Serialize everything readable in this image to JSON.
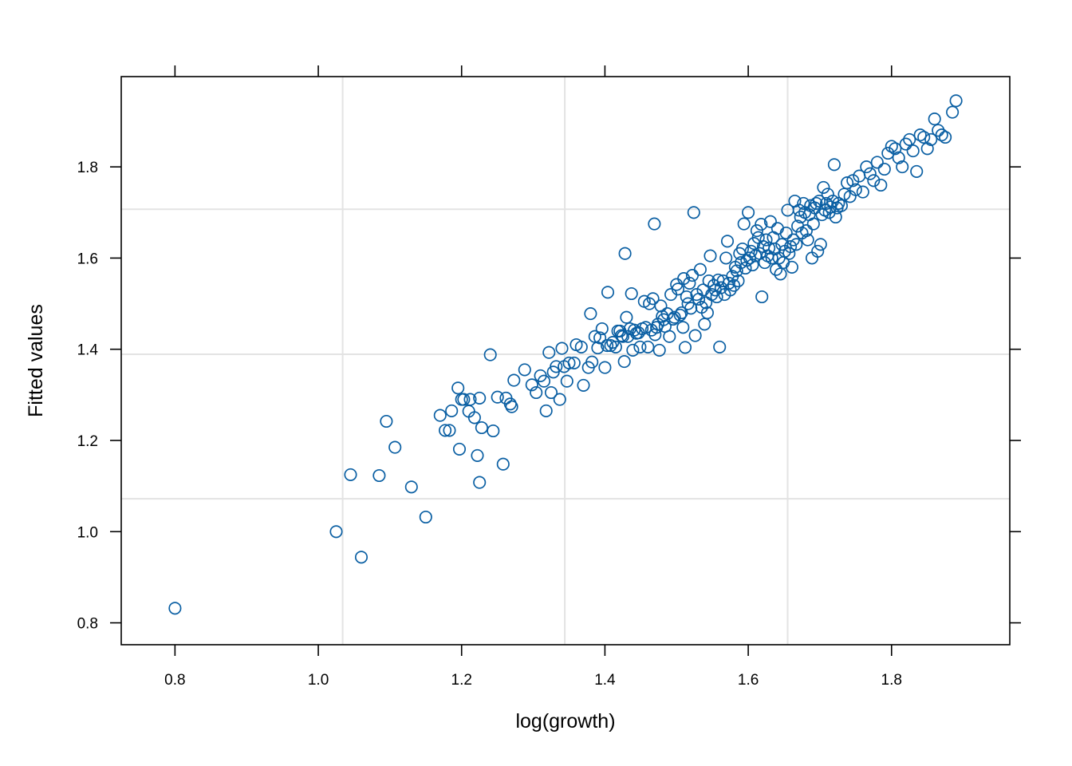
{
  "chart_data": {
    "type": "scatter",
    "title": "",
    "xlabel": "log(growth)",
    "ylabel": "Fitted values",
    "xlim": [
      0.725,
      1.965
    ],
    "ylim": [
      0.752,
      1.998
    ],
    "x_ticks": [
      0.8,
      1.0,
      1.2,
      1.4,
      1.6,
      1.8
    ],
    "y_ticks": [
      0.8,
      1.0,
      1.2,
      1.4,
      1.6,
      1.8
    ],
    "x_tick_labels": [
      "0.8",
      "1.0",
      "1.2",
      "1.4",
      "1.6",
      "1.8"
    ],
    "y_tick_labels": [
      "0.8",
      "1.0",
      "1.2",
      "1.4",
      "1.6",
      "1.8"
    ],
    "grid": true,
    "x_gridlines": [
      1.034,
      1.344,
      1.655
    ],
    "y_gridlines": [
      1.072,
      1.389,
      1.707
    ],
    "marker": "open-circle",
    "point_color": "#0a5fa3",
    "grid_color": "#e3e3e3",
    "series": [
      {
        "points": [
          [
            0.8,
            0.832
          ],
          [
            1.025,
            1.0
          ],
          [
            1.06,
            0.944
          ],
          [
            1.045,
            1.125
          ],
          [
            1.085,
            1.123
          ],
          [
            1.107,
            1.185
          ],
          [
            1.095,
            1.242
          ],
          [
            1.13,
            1.098
          ],
          [
            1.15,
            1.032
          ],
          [
            1.17,
            1.255
          ],
          [
            1.177,
            1.222
          ],
          [
            1.183,
            1.222
          ],
          [
            1.186,
            1.265
          ],
          [
            1.195,
            1.315
          ],
          [
            1.197,
            1.181
          ],
          [
            1.2,
            1.29
          ],
          [
            1.203,
            1.29
          ],
          [
            1.21,
            1.264
          ],
          [
            1.212,
            1.29
          ],
          [
            1.218,
            1.25
          ],
          [
            1.222,
            1.167
          ],
          [
            1.225,
            1.108
          ],
          [
            1.225,
            1.293
          ],
          [
            1.228,
            1.228
          ],
          [
            1.24,
            1.388
          ],
          [
            1.244,
            1.221
          ],
          [
            1.25,
            1.295
          ],
          [
            1.258,
            1.148
          ],
          [
            1.262,
            1.293
          ],
          [
            1.268,
            1.28
          ],
          [
            1.27,
            1.274
          ],
          [
            1.273,
            1.332
          ],
          [
            1.288,
            1.355
          ],
          [
            1.298,
            1.322
          ],
          [
            1.304,
            1.305
          ],
          [
            1.31,
            1.342
          ],
          [
            1.315,
            1.33
          ],
          [
            1.318,
            1.265
          ],
          [
            1.322,
            1.393
          ],
          [
            1.325,
            1.305
          ],
          [
            1.328,
            1.35
          ],
          [
            1.332,
            1.362
          ],
          [
            1.337,
            1.29
          ],
          [
            1.34,
            1.402
          ],
          [
            1.343,
            1.362
          ],
          [
            1.347,
            1.33
          ],
          [
            1.35,
            1.37
          ],
          [
            1.357,
            1.37
          ],
          [
            1.36,
            1.41
          ],
          [
            1.367,
            1.405
          ],
          [
            1.37,
            1.321
          ],
          [
            1.377,
            1.36
          ],
          [
            1.38,
            1.478
          ],
          [
            1.382,
            1.372
          ],
          [
            1.386,
            1.428
          ],
          [
            1.39,
            1.403
          ],
          [
            1.393,
            1.425
          ],
          [
            1.396,
            1.445
          ],
          [
            1.4,
            1.36
          ],
          [
            1.403,
            1.408
          ],
          [
            1.404,
            1.525
          ],
          [
            1.408,
            1.408
          ],
          [
            1.411,
            1.415
          ],
          [
            1.415,
            1.405
          ],
          [
            1.418,
            1.44
          ],
          [
            1.421,
            1.44
          ],
          [
            1.423,
            1.43
          ],
          [
            1.425,
            1.428
          ],
          [
            1.427,
            1.373
          ],
          [
            1.428,
            1.61
          ],
          [
            1.43,
            1.47
          ],
          [
            1.432,
            1.428
          ],
          [
            1.435,
            1.445
          ],
          [
            1.437,
            1.522
          ],
          [
            1.439,
            1.398
          ],
          [
            1.441,
            1.442
          ],
          [
            1.444,
            1.435
          ],
          [
            1.447,
            1.436
          ],
          [
            1.449,
            1.405
          ],
          [
            1.452,
            1.445
          ],
          [
            1.455,
            1.505
          ],
          [
            1.457,
            1.448
          ],
          [
            1.46,
            1.405
          ],
          [
            1.462,
            1.5
          ],
          [
            1.465,
            1.442
          ],
          [
            1.467,
            1.511
          ],
          [
            1.469,
            1.675
          ],
          [
            1.47,
            1.432
          ],
          [
            1.472,
            1.448
          ],
          [
            1.474,
            1.455
          ],
          [
            1.476,
            1.398
          ],
          [
            1.478,
            1.495
          ],
          [
            1.48,
            1.472
          ],
          [
            1.482,
            1.465
          ],
          [
            1.484,
            1.45
          ],
          [
            1.487,
            1.478
          ],
          [
            1.49,
            1.428
          ],
          [
            1.492,
            1.52
          ],
          [
            1.495,
            1.466
          ],
          [
            1.497,
            1.47
          ],
          [
            1.5,
            1.542
          ],
          [
            1.502,
            1.532
          ],
          [
            1.505,
            1.475
          ],
          [
            1.507,
            1.48
          ],
          [
            1.509,
            1.448
          ],
          [
            1.51,
            1.555
          ],
          [
            1.512,
            1.404
          ],
          [
            1.514,
            1.515
          ],
          [
            1.516,
            1.5
          ],
          [
            1.518,
            1.545
          ],
          [
            1.52,
            1.49
          ],
          [
            1.522,
            1.562
          ],
          [
            1.524,
            1.7
          ],
          [
            1.526,
            1.43
          ],
          [
            1.528,
            1.52
          ],
          [
            1.531,
            1.51
          ],
          [
            1.533,
            1.575
          ],
          [
            1.535,
            1.492
          ],
          [
            1.537,
            1.53
          ],
          [
            1.539,
            1.455
          ],
          [
            1.541,
            1.502
          ],
          [
            1.543,
            1.48
          ],
          [
            1.545,
            1.55
          ],
          [
            1.547,
            1.605
          ],
          [
            1.549,
            1.52
          ],
          [
            1.552,
            1.54
          ],
          [
            1.554,
            1.53
          ],
          [
            1.556,
            1.515
          ],
          [
            1.558,
            1.552
          ],
          [
            1.56,
            1.405
          ],
          [
            1.562,
            1.535
          ],
          [
            1.565,
            1.55
          ],
          [
            1.567,
            1.52
          ],
          [
            1.569,
            1.6
          ],
          [
            1.571,
            1.637
          ],
          [
            1.573,
            1.545
          ],
          [
            1.575,
            1.53
          ],
          [
            1.578,
            1.56
          ],
          [
            1.58,
            1.54
          ],
          [
            1.582,
            1.58
          ],
          [
            1.584,
            1.572
          ],
          [
            1.586,
            1.55
          ],
          [
            1.588,
            1.61
          ],
          [
            1.59,
            1.59
          ],
          [
            1.592,
            1.62
          ],
          [
            1.594,
            1.675
          ],
          [
            1.596,
            1.578
          ],
          [
            1.598,
            1.595
          ],
          [
            1.6,
            1.7
          ],
          [
            1.602,
            1.6
          ],
          [
            1.604,
            1.615
          ],
          [
            1.606,
            1.585
          ],
          [
            1.608,
            1.632
          ],
          [
            1.61,
            1.605
          ],
          [
            1.612,
            1.66
          ],
          [
            1.614,
            1.645
          ],
          [
            1.616,
            1.61
          ],
          [
            1.618,
            1.674
          ],
          [
            1.619,
            1.515
          ],
          [
            1.621,
            1.625
          ],
          [
            1.623,
            1.59
          ],
          [
            1.625,
            1.64
          ],
          [
            1.627,
            1.605
          ],
          [
            1.629,
            1.622
          ],
          [
            1.631,
            1.68
          ],
          [
            1.633,
            1.6
          ],
          [
            1.635,
            1.645
          ],
          [
            1.637,
            1.62
          ],
          [
            1.639,
            1.575
          ],
          [
            1.641,
            1.665
          ],
          [
            1.643,
            1.6
          ],
          [
            1.645,
            1.565
          ],
          [
            1.647,
            1.63
          ],
          [
            1.649,
            1.59
          ],
          [
            1.651,
            1.615
          ],
          [
            1.653,
            1.655
          ],
          [
            1.655,
            1.705
          ],
          [
            1.657,
            1.61
          ],
          [
            1.659,
            1.625
          ],
          [
            1.661,
            1.58
          ],
          [
            1.663,
            1.64
          ],
          [
            1.665,
            1.725
          ],
          [
            1.667,
            1.63
          ],
          [
            1.669,
            1.67
          ],
          [
            1.671,
            1.705
          ],
          [
            1.673,
            1.69
          ],
          [
            1.675,
            1.655
          ],
          [
            1.677,
            1.72
          ],
          [
            1.679,
            1.7
          ],
          [
            1.681,
            1.66
          ],
          [
            1.683,
            1.64
          ],
          [
            1.685,
            1.695
          ],
          [
            1.687,
            1.715
          ],
          [
            1.689,
            1.6
          ],
          [
            1.691,
            1.675
          ],
          [
            1.693,
            1.71
          ],
          [
            1.695,
            1.72
          ],
          [
            1.697,
            1.615
          ],
          [
            1.699,
            1.725
          ],
          [
            1.701,
            1.63
          ],
          [
            1.703,
            1.695
          ],
          [
            1.705,
            1.755
          ],
          [
            1.707,
            1.705
          ],
          [
            1.709,
            1.72
          ],
          [
            1.711,
            1.74
          ],
          [
            1.713,
            1.7
          ],
          [
            1.715,
            1.712
          ],
          [
            1.718,
            1.725
          ],
          [
            1.72,
            1.805
          ],
          [
            1.722,
            1.69
          ],
          [
            1.724,
            1.71
          ],
          [
            1.726,
            1.72
          ],
          [
            1.73,
            1.715
          ],
          [
            1.734,
            1.74
          ],
          [
            1.738,
            1.765
          ],
          [
            1.742,
            1.735
          ],
          [
            1.746,
            1.77
          ],
          [
            1.75,
            1.75
          ],
          [
            1.755,
            1.78
          ],
          [
            1.76,
            1.745
          ],
          [
            1.765,
            1.8
          ],
          [
            1.77,
            1.785
          ],
          [
            1.775,
            1.77
          ],
          [
            1.78,
            1.81
          ],
          [
            1.785,
            1.76
          ],
          [
            1.79,
            1.795
          ],
          [
            1.795,
            1.83
          ],
          [
            1.8,
            1.845
          ],
          [
            1.805,
            1.84
          ],
          [
            1.81,
            1.82
          ],
          [
            1.815,
            1.8
          ],
          [
            1.82,
            1.85
          ],
          [
            1.825,
            1.86
          ],
          [
            1.83,
            1.835
          ],
          [
            1.835,
            1.79
          ],
          [
            1.84,
            1.87
          ],
          [
            1.845,
            1.865
          ],
          [
            1.85,
            1.84
          ],
          [
            1.855,
            1.86
          ],
          [
            1.86,
            1.905
          ],
          [
            1.865,
            1.88
          ],
          [
            1.87,
            1.87
          ],
          [
            1.875,
            1.865
          ],
          [
            1.885,
            1.92
          ],
          [
            1.89,
            1.945
          ]
        ]
      }
    ]
  }
}
